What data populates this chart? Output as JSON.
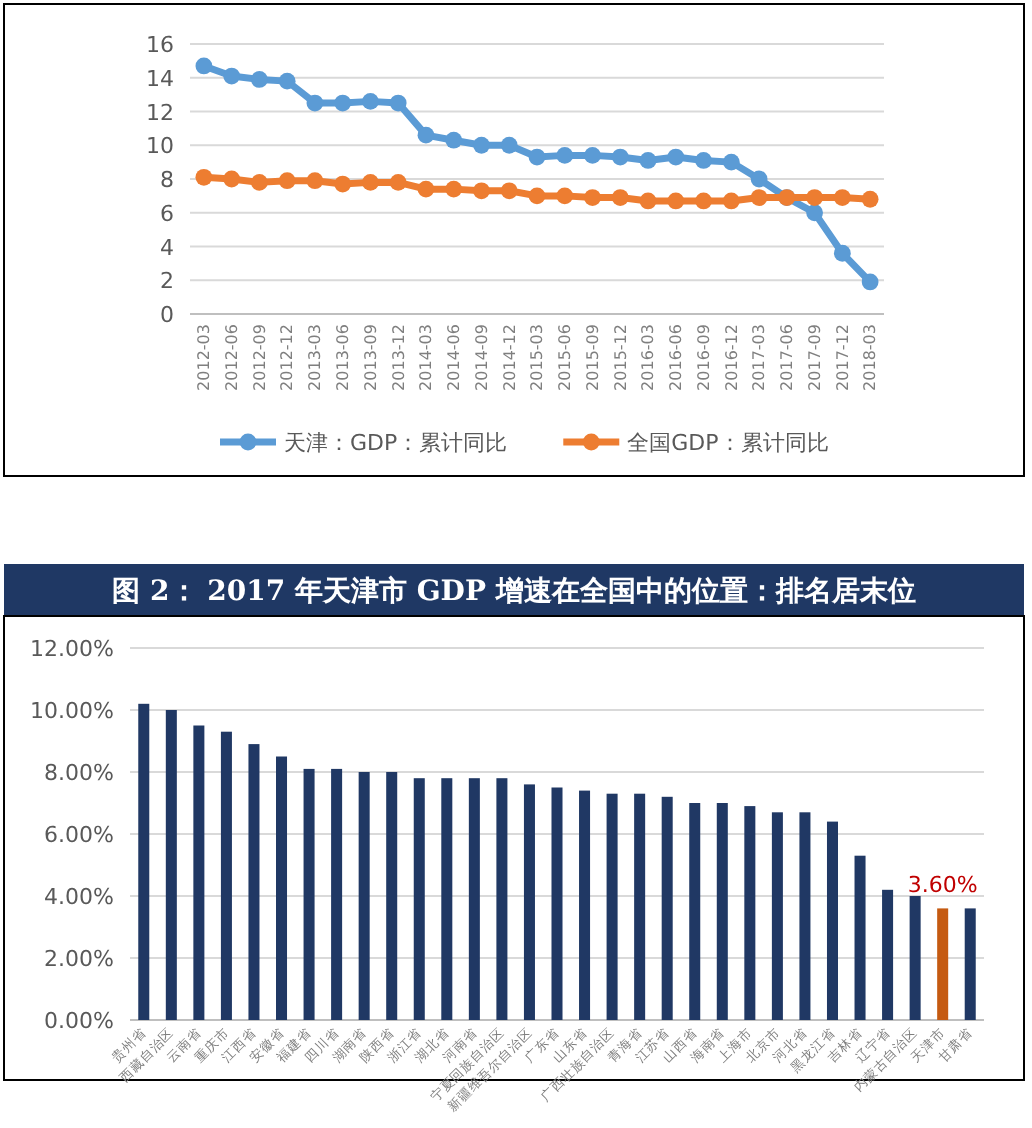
{
  "chart_data": [
    {
      "type": "line",
      "categories": [
        "2012-03",
        "2012-06",
        "2012-09",
        "2012-12",
        "2013-03",
        "2013-06",
        "2013-09",
        "2013-12",
        "2014-03",
        "2014-06",
        "2014-09",
        "2014-12",
        "2015-03",
        "2015-06",
        "2015-09",
        "2015-12",
        "2016-03",
        "2016-06",
        "2016-09",
        "2016-12",
        "2017-03",
        "2017-06",
        "2017-09",
        "2017-12",
        "2018-03"
      ],
      "series": [
        {
          "name": "天津：GDP：累计同比",
          "color": "#5b9bd5",
          "values": [
            14.7,
            14.1,
            13.9,
            13.8,
            12.5,
            12.5,
            12.6,
            12.5,
            10.6,
            10.3,
            10.0,
            10.0,
            9.3,
            9.4,
            9.4,
            9.3,
            9.1,
            9.3,
            9.1,
            9.0,
            8.0,
            6.9,
            6.0,
            3.6,
            1.9
          ]
        },
        {
          "name": "全国GDP：累计同比",
          "color": "#ed7d31",
          "values": [
            8.1,
            8.0,
            7.8,
            7.9,
            7.9,
            7.7,
            7.8,
            7.8,
            7.4,
            7.4,
            7.3,
            7.3,
            7.0,
            7.0,
            6.9,
            6.9,
            6.7,
            6.7,
            6.7,
            6.7,
            6.9,
            6.9,
            6.9,
            6.9,
            6.8
          ]
        }
      ],
      "ylim": [
        0,
        16
      ],
      "yticks": [
        0,
        2,
        4,
        6,
        8,
        10,
        12,
        14,
        16
      ],
      "grid": "y",
      "legend": "bottom",
      "marker": "circle",
      "line_style": "solid"
    },
    {
      "type": "bar",
      "title": "图 2： 2017 年天津市 GDP 增速在全国中的位置：排名居末位",
      "categories": [
        "贵州省",
        "西藏自治区",
        "云南省",
        "重庆市",
        "江西省",
        "安徽省",
        "福建省",
        "四川省",
        "湖南省",
        "陕西省",
        "浙江省",
        "湖北省",
        "河南省",
        "宁夏回族自治区",
        "新疆维吾尔自治区",
        "广东省",
        "山东省",
        "广西壮族自治区",
        "青海省",
        "江苏省",
        "山西省",
        "海南省",
        "上海市",
        "北京市",
        "河北省",
        "黑龙江省",
        "吉林省",
        "辽宁省",
        "内蒙古自治区",
        "天津市",
        "甘肃省"
      ],
      "values": [
        10.2,
        10.0,
        9.5,
        9.3,
        8.9,
        8.5,
        8.1,
        8.1,
        8.0,
        8.0,
        7.8,
        7.8,
        7.8,
        7.8,
        7.6,
        7.5,
        7.4,
        7.3,
        7.3,
        7.2,
        7.0,
        7.0,
        6.9,
        6.7,
        6.7,
        6.4,
        5.3,
        4.2,
        4.0,
        3.6,
        3.6
      ],
      "colors": [
        "#203864",
        "#203864",
        "#203864",
        "#203864",
        "#203864",
        "#203864",
        "#203864",
        "#203864",
        "#203864",
        "#203864",
        "#203864",
        "#203864",
        "#203864",
        "#203864",
        "#203864",
        "#203864",
        "#203864",
        "#203864",
        "#203864",
        "#203864",
        "#203864",
        "#203864",
        "#203864",
        "#203864",
        "#203864",
        "#203864",
        "#203864",
        "#203864",
        "#203864",
        "#c55a11",
        "#203864"
      ],
      "value_labels": [
        null,
        null,
        null,
        null,
        null,
        null,
        null,
        null,
        null,
        null,
        null,
        null,
        null,
        null,
        null,
        null,
        null,
        null,
        null,
        null,
        null,
        null,
        null,
        null,
        null,
        null,
        null,
        null,
        null,
        "3.60%",
        null
      ],
      "ylim": [
        0,
        12
      ],
      "yticks": [
        {
          "value": 0,
          "label": "0.00%"
        },
        {
          "value": 2,
          "label": "2.00%"
        },
        {
          "value": 4,
          "label": "4.00%"
        },
        {
          "value": 6,
          "label": "6.00%"
        },
        {
          "value": 8,
          "label": "8.00%"
        },
        {
          "value": 10,
          "label": "10.00%"
        },
        {
          "value": 12,
          "label": "12.00%"
        }
      ],
      "grid": "y"
    }
  ]
}
